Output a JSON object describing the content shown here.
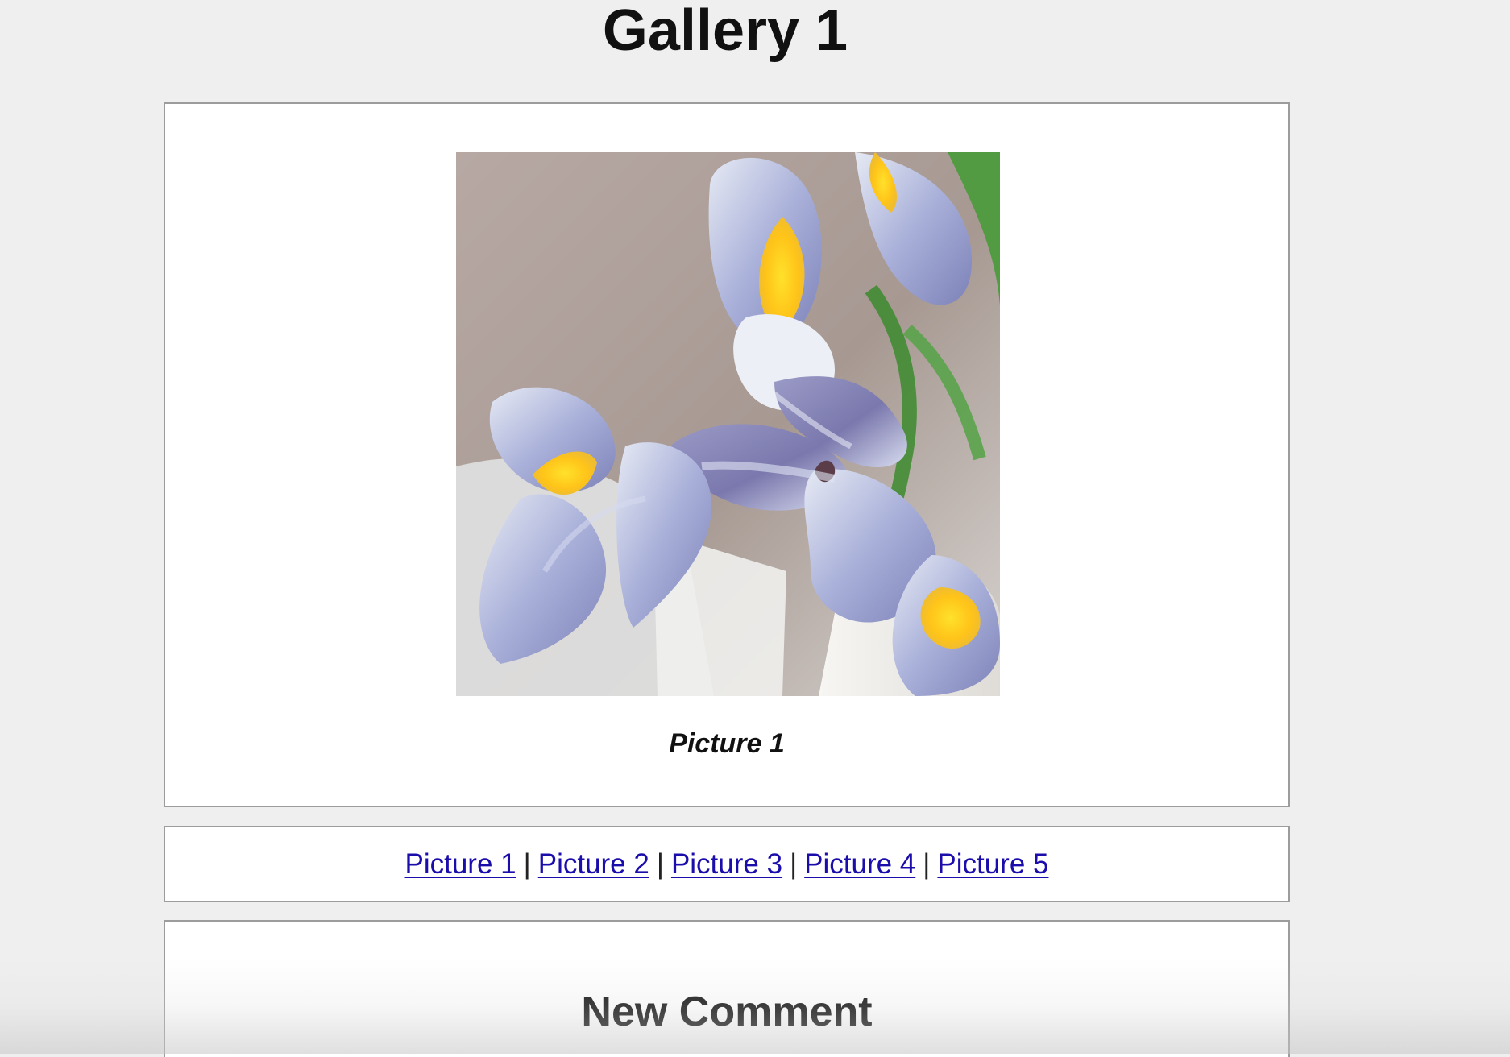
{
  "gallery": {
    "title": "Gallery 1",
    "current_picture": {
      "caption": "Picture 1",
      "image_description": "purple-iris-photo"
    }
  },
  "navigation": {
    "links": [
      {
        "label": "Picture 1"
      },
      {
        "label": "Picture 2"
      },
      {
        "label": "Picture 3"
      },
      {
        "label": "Picture 4"
      },
      {
        "label": "Picture 5"
      }
    ],
    "separator": "|"
  },
  "comments": {
    "heading": "New Comment"
  },
  "colors": {
    "page_background": "#efefef",
    "panel_background": "#ffffff",
    "panel_border": "#9c9c9c",
    "link": "#1a0dab"
  }
}
